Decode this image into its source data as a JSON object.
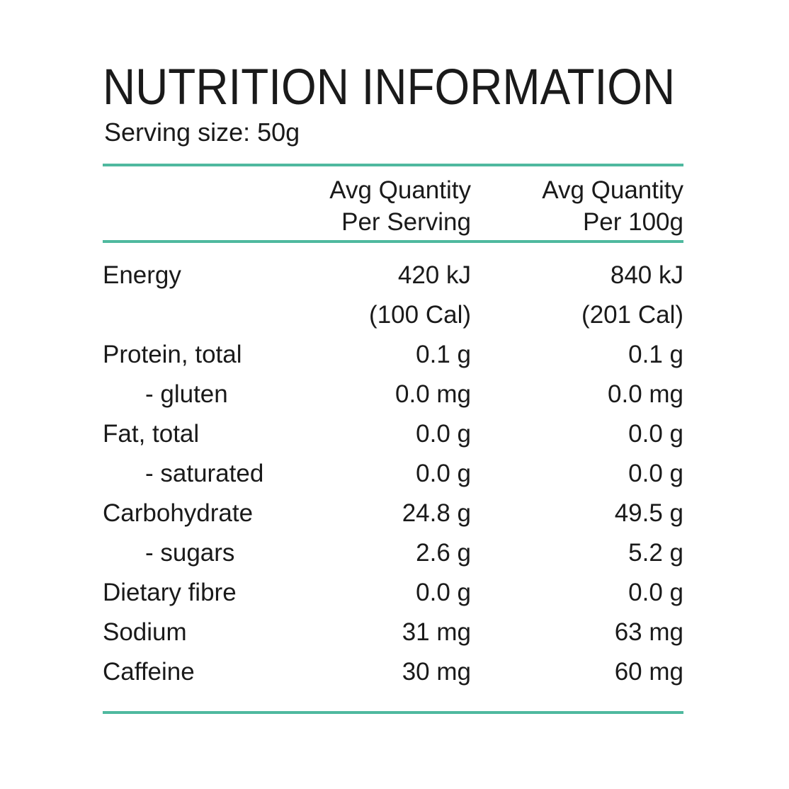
{
  "page": {
    "title": "NUTRITION INFORMATION",
    "serving_size": "Serving size: 50g",
    "accent_color": "#4FB99F",
    "text_color": "#1a1a1a"
  },
  "table": {
    "header": {
      "col_serving_line1": "Avg Quantity",
      "col_serving_line2": "Per Serving",
      "col_100g_line1": "Avg Quantity",
      "col_100g_line2": "Per 100g"
    },
    "rows": [
      {
        "label": "Energy",
        "per_serving": "420 kJ",
        "per_100g": "840 kJ"
      },
      {
        "label": "",
        "per_serving": "(100 Cal)",
        "per_100g": "(201 Cal)"
      },
      {
        "label": "Protein, total",
        "per_serving": "0.1 g",
        "per_100g": "0.1 g"
      },
      {
        "label": "- gluten",
        "per_serving": "0.0 mg",
        "per_100g": "0.0 mg"
      },
      {
        "label": "Fat, total",
        "per_serving": "0.0 g",
        "per_100g": "0.0 g"
      },
      {
        "label": "- saturated",
        "per_serving": "0.0 g",
        "per_100g": "0.0 g"
      },
      {
        "label": "Carbohydrate",
        "per_serving": "24.8 g",
        "per_100g": "49.5 g"
      },
      {
        "label": "- sugars",
        "per_serving": "2.6 g",
        "per_100g": "5.2 g"
      },
      {
        "label": "Dietary fibre",
        "per_serving": "0.0 g",
        "per_100g": "0.0 g"
      },
      {
        "label": "Sodium",
        "per_serving": "31 mg",
        "per_100g": "63 mg"
      },
      {
        "label": "Caffeine",
        "per_serving": "30 mg",
        "per_100g": "60 mg"
      }
    ]
  }
}
